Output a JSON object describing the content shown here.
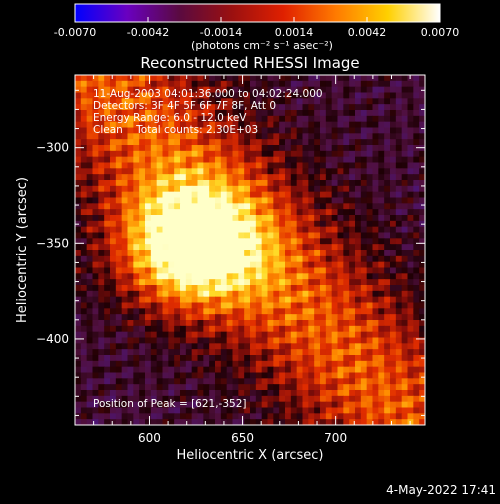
{
  "colorbar": {
    "min": -0.007,
    "max": 0.007,
    "ticks": [
      "-0.0070",
      "-0.0042",
      "-0.0014",
      "0.0014",
      "0.0042",
      "0.0070"
    ],
    "unit_label": "(photons cm⁻² s⁻¹ asec⁻²)",
    "stops": [
      "#0000ff",
      "#6a00c0",
      "#5a0a40",
      "#9a1010",
      "#e02000",
      "#ff7a00",
      "#ffd000",
      "#ffffff"
    ]
  },
  "chart_data": {
    "type": "heatmap",
    "title": "Reconstructed RHESSI Image",
    "xlabel": "Heliocentric X (arcsec)",
    "ylabel": "Heliocentric Y (arcsec)",
    "xlim": [
      560,
      748
    ],
    "ylim": [
      -445,
      -262
    ],
    "x_ticks": [
      600,
      650,
      700
    ],
    "y_ticks": [
      -300,
      -350,
      -400
    ],
    "annotations": [
      "11-Aug-2003 04:01:36.000 to 04:02:24.000",
      "Detectors: 3F 4F 5F 6F 7F 8F, Att 0",
      "Energy Range: 6.0 - 12.0 keV",
      "Clean    Total counts: 2.30E+03"
    ],
    "peak_label": "Position of Peak = [621,-352]",
    "peak": [
      621,
      -352
    ]
  },
  "footer": {
    "date": "4-May-2022 17:41"
  }
}
